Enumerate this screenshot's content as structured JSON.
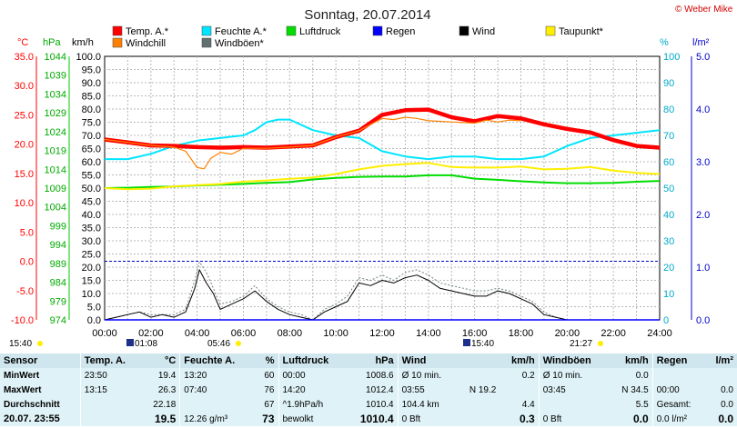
{
  "title": "Sonntag, 20.07.2014",
  "copyright": "© Weber Mike",
  "axes": {
    "units": {
      "temp": "°C",
      "press": "hPa",
      "wind": "km/h",
      "hum": "%",
      "rain": "l/m²"
    },
    "temp_ticks": [
      "35.0",
      "30.0",
      "25.0",
      "20.0",
      "15.0",
      "10.0",
      "5.0",
      "0.0",
      "-5.0",
      "-10.0"
    ],
    "press_ticks": [
      "1044",
      "1039",
      "1034",
      "1029",
      "1024",
      "1019",
      "1014",
      "1009",
      "1004",
      "999",
      "994",
      "989",
      "984",
      "979",
      "974"
    ],
    "wind_ticks": [
      "100.0",
      "95.0",
      "90.0",
      "85.0",
      "80.0",
      "75.0",
      "70.0",
      "65.0",
      "60.0",
      "55.0",
      "50.0",
      "45.0",
      "40.0",
      "35.0",
      "30.0",
      "25.0",
      "20.0",
      "15.0",
      "10.0",
      "5.0",
      "0.0"
    ],
    "hum_ticks": [
      "100",
      "90",
      "80",
      "70",
      "60",
      "50",
      "40",
      "30",
      "20",
      "10",
      "0"
    ],
    "rain_ticks": [
      "5.0",
      "4.0",
      "3.0",
      "2.0",
      "1.0",
      "0.0"
    ],
    "x_ticks": [
      "00:00",
      "02:00",
      "04:00",
      "06:00",
      "08:00",
      "10:00",
      "12:00",
      "14:00",
      "16:00",
      "18:00",
      "20:00",
      "22:00",
      "24:00"
    ]
  },
  "legend": [
    {
      "label": "Temp. A.*",
      "color": "#ff0000"
    },
    {
      "label": "Feuchte A.*",
      "color": "#00e5ff"
    },
    {
      "label": "Luftdruck",
      "color": "#00dd00"
    },
    {
      "label": "Regen",
      "color": "#0000ff"
    },
    {
      "label": "Wind",
      "color": "#000000"
    },
    {
      "label": "Taupunkt*",
      "color": "#ffee00"
    },
    {
      "label": "Windchill",
      "color": "#ff7f00"
    },
    {
      "label": "Windböen*",
      "color": "#607070"
    }
  ],
  "sun": {
    "rise_label": "15:40",
    "moon_rise": "01:08",
    "sunrise": "05:46",
    "moon_set": "15:40",
    "sunset": "21:27"
  },
  "chart_data": {
    "type": "line",
    "x_unit": "hours",
    "xlim": [
      0,
      24
    ],
    "series": [
      {
        "name": "Temp. A.*",
        "axis": "°C",
        "ylim": [
          -10,
          35
        ],
        "x": [
          0,
          1,
          2,
          3,
          4,
          5,
          6,
          7,
          8,
          9,
          10,
          11,
          12,
          13,
          14,
          15,
          16,
          17,
          18,
          19,
          20,
          21,
          22,
          23,
          24
        ],
        "y": [
          20.8,
          20.3,
          19.8,
          19.7,
          19.5,
          19.4,
          19.5,
          19.4,
          19.6,
          19.8,
          21.2,
          22.3,
          25.0,
          25.8,
          25.9,
          24.6,
          23.9,
          24.8,
          24.4,
          23.4,
          22.6,
          22.0,
          20.7,
          19.7,
          19.4
        ]
      },
      {
        "name": "Windchill",
        "axis": "°C",
        "ylim": [
          -10,
          35
        ],
        "x": [
          0,
          1,
          2,
          3,
          3.5,
          4,
          4.3,
          4.6,
          5,
          5.5,
          6,
          7,
          8,
          9,
          10,
          11,
          12,
          12.5,
          13,
          13.5,
          14,
          15,
          16,
          16.5,
          17,
          17.5,
          18
        ],
        "y": [
          20.8,
          20.3,
          19.8,
          19.5,
          18.8,
          16.0,
          15.8,
          17.6,
          18.6,
          18.3,
          19.3,
          19.3,
          19.5,
          19.8,
          21.2,
          22.3,
          24.4,
          24.2,
          24.6,
          24.4,
          24.0,
          23.8,
          23.6,
          24.1,
          23.8,
          24.1,
          24.0
        ]
      },
      {
        "name": "Feuchte A.*",
        "axis": "%",
        "ylim": [
          0,
          100
        ],
        "x": [
          0,
          1,
          2,
          3,
          4,
          5,
          6,
          6.5,
          7,
          7.5,
          8,
          9,
          10,
          11,
          12,
          13,
          14,
          15,
          16,
          17,
          18,
          19,
          20,
          21,
          22,
          23,
          24
        ],
        "y": [
          61,
          61,
          63,
          66,
          68,
          69,
          70,
          72,
          75,
          76,
          76,
          72,
          70,
          69,
          64,
          62,
          61,
          62,
          62,
          61,
          61,
          62,
          66,
          69,
          70,
          71,
          72
        ]
      },
      {
        "name": "Taupunkt*",
        "axis": "°C",
        "ylim": [
          -10,
          35
        ],
        "x": [
          0,
          1,
          2,
          3,
          4,
          5,
          6,
          7,
          8,
          9,
          10,
          11,
          12,
          13,
          14,
          15,
          16,
          17,
          18,
          19,
          20,
          21,
          22,
          23,
          24
        ],
        "y": [
          12.5,
          12.3,
          12.4,
          12.8,
          13.0,
          13.2,
          13.6,
          13.8,
          14.1,
          14.3,
          14.9,
          15.7,
          16.3,
          16.6,
          16.8,
          16.1,
          16.0,
          16.0,
          16.2,
          15.7,
          15.8,
          16.1,
          15.5,
          15.1,
          14.9
        ]
      },
      {
        "name": "Luftdruck",
        "axis": "hPa",
        "ylim": [
          974,
          1044
        ],
        "x": [
          0,
          1,
          2,
          3,
          4,
          5,
          6,
          7,
          8,
          9,
          10,
          11,
          12,
          13,
          14,
          15,
          16,
          17,
          18,
          19,
          20,
          21,
          22,
          23,
          24
        ],
        "y": [
          1009.0,
          1009.1,
          1009.3,
          1009.4,
          1009.7,
          1009.9,
          1010.1,
          1010.4,
          1010.6,
          1011.3,
          1011.7,
          1012.0,
          1012.1,
          1012.1,
          1012.4,
          1012.4,
          1011.5,
          1011.2,
          1010.8,
          1010.5,
          1010.3,
          1010.3,
          1010.4,
          1010.7,
          1010.9
        ]
      },
      {
        "name": "Wind",
        "axis": "km/h",
        "ylim": [
          0,
          100
        ],
        "x": [
          0,
          0.5,
          1,
          1.5,
          2,
          2.5,
          3,
          3.5,
          3.9,
          4.1,
          4.4,
          4.7,
          5,
          5.5,
          6,
          6.5,
          7,
          7.5,
          8,
          8.5,
          9,
          9.5,
          10,
          10.5,
          11,
          11.5,
          12,
          12.5,
          13,
          13.5,
          14,
          14.5,
          15,
          15.5,
          16,
          16.5,
          17,
          17.5,
          18,
          18.5,
          19,
          19.5,
          20,
          21,
          22,
          23,
          24
        ],
        "y": [
          0,
          1,
          2,
          3,
          1,
          2,
          1,
          3,
          12,
          19,
          14,
          10,
          4,
          6,
          8,
          11,
          7,
          4,
          2,
          1,
          0,
          3,
          5,
          7,
          14,
          13,
          15,
          14,
          16,
          17,
          15,
          12,
          11,
          10,
          9,
          9,
          11,
          10,
          8,
          6,
          2,
          1,
          0,
          0,
          0,
          0,
          0
        ]
      },
      {
        "name": "Windböen*",
        "axis": "km/h",
        "ylim": [
          0,
          100
        ],
        "x": [
          0,
          0.5,
          1,
          1.5,
          2,
          2.5,
          3,
          3.5,
          3.9,
          4.1,
          4.4,
          4.7,
          5,
          5.5,
          6,
          6.5,
          7,
          7.5,
          8,
          8.5,
          9,
          9.5,
          10,
          10.5,
          11,
          11.5,
          12,
          12.5,
          13,
          13.5,
          14,
          14.5,
          15,
          15.5,
          16,
          16.5,
          17,
          17.5,
          18,
          18.5,
          19,
          19.5,
          20,
          21,
          22,
          23,
          24
        ],
        "y": [
          0,
          1,
          2,
          3,
          2,
          2,
          2,
          4,
          15,
          22,
          18,
          12,
          6,
          7,
          9,
          13,
          8,
          5,
          3,
          2,
          0,
          4,
          6,
          9,
          16,
          15,
          17,
          15,
          18,
          19,
          17,
          14,
          13,
          12,
          11,
          11,
          12,
          11,
          9,
          7,
          3,
          1,
          0,
          0,
          0,
          0,
          0
        ]
      },
      {
        "name": "Regen",
        "axis": "l/m²",
        "ylim": [
          0,
          5
        ],
        "x": [
          0,
          24
        ],
        "y": [
          0,
          0
        ]
      }
    ]
  },
  "stats": {
    "headers": {
      "sensor": "Sensor",
      "temp": "Temp. A.",
      "temp_unit": "°C",
      "hum": "Feuchte A.",
      "hum_unit": "%",
      "press": "Luftdruck",
      "press_unit": "hPa",
      "wind": "Wind",
      "wind_unit": "km/h",
      "gust": "Windböen",
      "gust_unit": "km/h",
      "rain": "Regen",
      "rain_unit": "l/m²"
    },
    "rows": [
      {
        "label": "MinWert",
        "temp_time": "23:50",
        "temp": "19.4",
        "hum_time": "13:20",
        "hum": "60",
        "press_time": "00:00",
        "press": "1008.6",
        "wind_desc": "Ø 10 min.",
        "wind": "0.2",
        "gust_desc": "Ø 10 min.",
        "gust": "0.0",
        "rain_desc": "",
        "rain": ""
      },
      {
        "label": "MaxWert",
        "temp_time": "13:15",
        "temp": "26.3",
        "hum_time": "07:40",
        "hum": "76",
        "press_time": "14:20",
        "press": "1012.4",
        "wind_desc": "03:55",
        "wind_mid": "N 19.2",
        "wind": "",
        "gust_desc": "03:45",
        "gust": "N 34.5",
        "rain_desc": "00:00",
        "rain": "0.0"
      },
      {
        "label": "Durchschnitt",
        "temp_time": "",
        "temp": "22.18",
        "hum_time": "",
        "hum": "67",
        "press_time": "^1.9hPa/h",
        "press": "1010.4",
        "wind_desc": "104.4 km",
        "wind": "4.4",
        "gust_desc": "",
        "gust": "5.5",
        "rain_desc": "Gesamt:",
        "rain": "0.0"
      },
      {
        "label": "20.07. 23:55",
        "temp_time": "",
        "temp": "19.5",
        "hum_time": "12.26 g/m³",
        "hum": "73",
        "press_time": "bewolkt",
        "press": "1010.4",
        "wind_desc": "0 Bft",
        "wind": "0.3",
        "gust_desc": "0 Bft",
        "gust": "0.0",
        "rain_desc": "0.0 l/m²",
        "rain": "0.0"
      }
    ]
  }
}
